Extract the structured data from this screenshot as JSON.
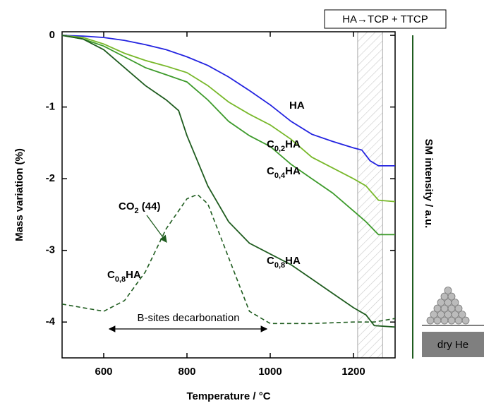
{
  "chart_data": {
    "type": "line",
    "x_label": "Temperature / °C",
    "y_label": "Mass variation (%)",
    "y2_label": "SM intensity / a.u.",
    "xlim": [
      500,
      1300
    ],
    "xticks": [
      600,
      800,
      1000,
      1200
    ],
    "ylim": [
      -4.5,
      0.05
    ],
    "yticks": [
      0,
      -1,
      -2,
      -3,
      -4
    ],
    "y2lim": [
      -4.5,
      0.05
    ],
    "shaded_xrange": [
      1210,
      1270
    ],
    "series": [
      {
        "name": "HA",
        "color": "#2323e0",
        "x": [
          500,
          550,
          600,
          650,
          700,
          750,
          800,
          850,
          900,
          950,
          1000,
          1050,
          1100,
          1150,
          1200,
          1220,
          1240,
          1260,
          1300
        ],
        "values": [
          0,
          -0.01,
          -0.03,
          -0.07,
          -0.13,
          -0.2,
          -0.3,
          -0.42,
          -0.58,
          -0.77,
          -0.97,
          -1.2,
          -1.38,
          -1.48,
          -1.57,
          -1.6,
          -1.75,
          -1.82,
          -1.82
        ]
      },
      {
        "name": "C0,2HA",
        "color": "#78b82a",
        "x": [
          500,
          550,
          600,
          650,
          700,
          750,
          800,
          850,
          900,
          950,
          1000,
          1050,
          1100,
          1150,
          1200,
          1230,
          1260,
          1300
        ],
        "values": [
          0,
          -0.03,
          -0.12,
          -0.25,
          -0.35,
          -0.43,
          -0.52,
          -0.7,
          -0.93,
          -1.1,
          -1.25,
          -1.45,
          -1.7,
          -1.85,
          -2.0,
          -2.1,
          -2.3,
          -2.32
        ]
      },
      {
        "name": "C0,4HA",
        "color": "#3c9a2a",
        "x": [
          500,
          550,
          600,
          650,
          700,
          750,
          800,
          850,
          900,
          950,
          1000,
          1050,
          1100,
          1150,
          1200,
          1230,
          1260,
          1300
        ],
        "values": [
          0,
          -0.05,
          -0.15,
          -0.3,
          -0.45,
          -0.55,
          -0.65,
          -0.9,
          -1.2,
          -1.4,
          -1.55,
          -1.8,
          -2.0,
          -2.2,
          -2.45,
          -2.6,
          -2.78,
          -2.78
        ]
      },
      {
        "name": "C0,8HA",
        "color": "#1f5c1f",
        "x": [
          500,
          550,
          600,
          650,
          700,
          750,
          780,
          800,
          850,
          900,
          950,
          1000,
          1050,
          1100,
          1150,
          1200,
          1230,
          1250,
          1300
        ],
        "values": [
          0,
          -0.05,
          -0.2,
          -0.45,
          -0.7,
          -0.9,
          -1.05,
          -1.4,
          -2.1,
          -2.6,
          -2.9,
          -3.05,
          -3.2,
          -3.4,
          -3.6,
          -3.8,
          -3.9,
          -4.05,
          -4.07
        ]
      },
      {
        "name": "CO2 (44)",
        "color": "#1f5c1f",
        "axis": "y2",
        "dashed": true,
        "x": [
          500,
          550,
          600,
          650,
          700,
          750,
          800,
          825,
          850,
          900,
          950,
          1000,
          1100,
          1200,
          1250,
          1300
        ],
        "values": [
          -3.75,
          -3.8,
          -3.85,
          -3.7,
          -3.3,
          -2.7,
          -2.28,
          -2.22,
          -2.35,
          -3.1,
          -3.85,
          -4.02,
          -4.02,
          -4.0,
          -4.0,
          -3.95
        ]
      }
    ],
    "annotations": [
      "HA→TCP + TTCP",
      "C0,8HA",
      "B-sites decarbonation",
      "dry He"
    ]
  }
}
